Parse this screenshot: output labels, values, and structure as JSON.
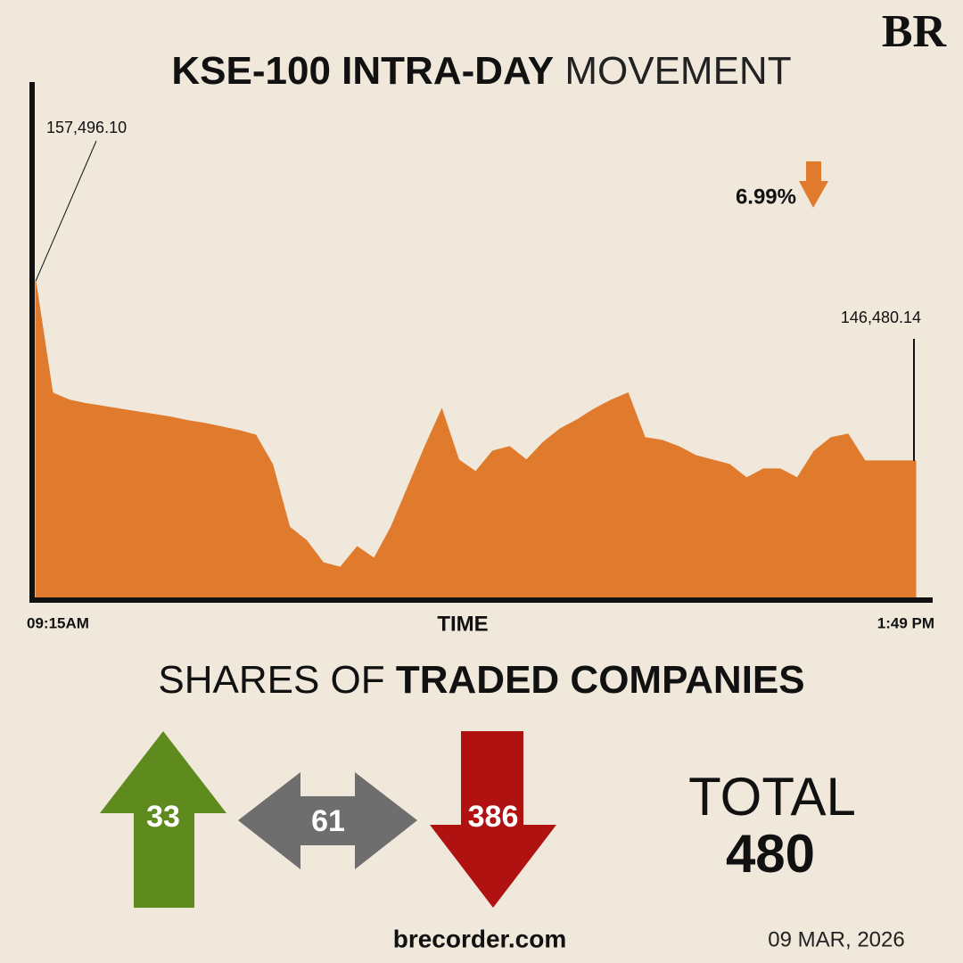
{
  "chart_data": {
    "type": "area",
    "title": [
      "KSE-100 INTRA-DAY",
      "MOVEMENT"
    ],
    "x_label": "TIME",
    "color": "#e07a2c",
    "categories": [
      "09:15AM",
      null,
      null,
      null,
      null,
      null,
      null,
      null,
      null,
      null,
      null,
      null,
      null,
      null,
      null,
      null,
      null,
      null,
      null,
      null,
      null,
      null,
      null,
      null,
      null,
      null,
      null,
      null,
      null,
      null,
      null,
      null,
      null,
      null,
      null,
      null,
      null,
      null,
      null,
      null,
      null,
      null,
      null,
      null,
      null,
      null,
      null,
      null,
      null,
      null,
      null,
      null,
      "1:49 PM"
    ],
    "values": [
      157496.1,
      150645,
      150206,
      149987,
      149823,
      149658,
      149494,
      149330,
      149165,
      148946,
      148782,
      148562,
      148343,
      148069,
      146261,
      142425,
      141603,
      140233,
      139959,
      141219,
      140507,
      142425,
      144891,
      147357,
      149658,
      146535,
      145822,
      147083,
      147357,
      146535,
      147631,
      148453,
      149001,
      149658,
      150206,
      150645,
      147905,
      147740,
      147357,
      146809,
      146535,
      146261,
      145439,
      145987,
      145987,
      145439,
      147083,
      147905,
      148124,
      146480.14,
      146480.14,
      146480.14,
      146480.14
    ],
    "value_labels": [
      "157,496.10",
      null,
      null,
      null,
      null,
      null,
      null,
      null,
      null,
      null,
      null,
      null,
      null,
      null,
      null,
      null,
      null,
      null,
      null,
      null,
      null,
      null,
      null,
      null,
      null,
      null,
      null,
      null,
      null,
      null,
      null,
      null,
      null,
      null,
      null,
      null,
      null,
      null,
      null,
      null,
      null,
      null,
      null,
      null,
      null,
      null,
      null,
      null,
      null,
      null,
      null,
      null,
      "146,480.14"
    ],
    "ylim": [
      138000,
      169700
    ],
    "change": {
      "value": 6.99,
      "label": "6.99%"
    }
  },
  "shares": {
    "title": [
      "SHARES OF",
      "TRADED COMPANIES"
    ],
    "advanced": 33,
    "unchanged": 61,
    "declined": 386,
    "total_label": "TOTAL",
    "total": 480
  },
  "footer": {
    "site": "brecorder.com",
    "date": "09 MAR, 2026",
    "logo": "BR"
  }
}
